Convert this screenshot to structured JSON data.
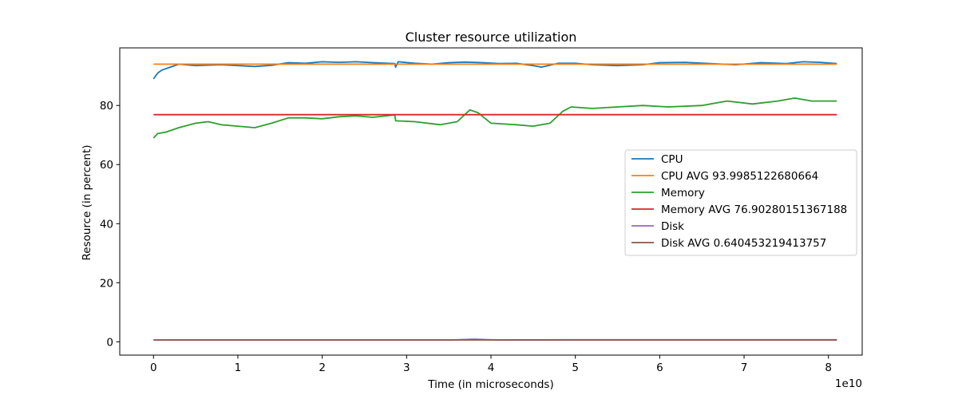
{
  "chart_data": {
    "type": "line",
    "title": "Cluster resource utilization",
    "xlabel": "Time (in microseconds)",
    "ylabel": "Resource (in percent)",
    "x_offset_label": "1e10",
    "xlim": [
      -0.4,
      8.4
    ],
    "ylim": [
      -4.5,
      99.5
    ],
    "x_ticks": [
      0,
      1,
      2,
      3,
      4,
      5,
      6,
      7,
      8
    ],
    "y_ticks": [
      0,
      20,
      40,
      60,
      80
    ],
    "grid": false,
    "legend_position": "center-right",
    "series": [
      {
        "name": "CPU",
        "color": "#1f77b4",
        "x": [
          0,
          0.05,
          0.1,
          0.2,
          0.3,
          0.5,
          0.8,
          1.0,
          1.2,
          1.4,
          1.6,
          1.8,
          2.0,
          2.2,
          2.4,
          2.6,
          2.86,
          2.87,
          2.9,
          3.1,
          3.3,
          3.5,
          3.7,
          3.9,
          4.1,
          4.3,
          4.5,
          4.6,
          4.8,
          5.0,
          5.2,
          5.5,
          5.8,
          6.0,
          6.3,
          6.6,
          6.9,
          7.2,
          7.5,
          7.7,
          7.9,
          8.1
        ],
        "y": [
          89.0,
          91.0,
          92.0,
          93.0,
          94.0,
          93.5,
          93.8,
          93.5,
          93.2,
          93.6,
          94.5,
          94.3,
          94.8,
          94.6,
          94.8,
          94.5,
          94.2,
          93.0,
          94.8,
          94.3,
          94.0,
          94.5,
          94.7,
          94.5,
          94.2,
          94.3,
          93.5,
          93.0,
          94.3,
          94.3,
          93.8,
          93.5,
          93.8,
          94.5,
          94.6,
          94.2,
          93.8,
          94.5,
          94.2,
          94.8,
          94.6,
          94.2
        ]
      },
      {
        "name": "CPU AVG 93.9985122680664",
        "color": "#ff7f0e",
        "x": [
          0,
          8.1
        ],
        "y": [
          93.9985122680664,
          93.9985122680664
        ]
      },
      {
        "name": "Memory",
        "color": "#2ca02c",
        "x": [
          0,
          0.05,
          0.15,
          0.3,
          0.5,
          0.65,
          0.8,
          1.0,
          1.2,
          1.4,
          1.6,
          1.8,
          2.0,
          2.2,
          2.4,
          2.6,
          2.86,
          2.87,
          3.1,
          3.4,
          3.6,
          3.75,
          3.85,
          4.0,
          4.3,
          4.5,
          4.7,
          4.85,
          4.95,
          5.2,
          5.5,
          5.8,
          6.1,
          6.5,
          6.8,
          7.1,
          7.4,
          7.6,
          7.8,
          8.1
        ],
        "y": [
          69.0,
          70.5,
          71.0,
          72.5,
          74.0,
          74.5,
          73.5,
          73.0,
          72.5,
          74.0,
          75.8,
          75.8,
          75.5,
          76.2,
          76.5,
          76.0,
          76.8,
          74.8,
          74.5,
          73.5,
          74.5,
          78.5,
          77.5,
          74.0,
          73.5,
          73.0,
          74.0,
          78.0,
          79.5,
          79.0,
          79.5,
          80.0,
          79.5,
          80.0,
          81.5,
          80.5,
          81.5,
          82.5,
          81.5,
          81.5
        ]
      },
      {
        "name": "Memory AVG 76.90280151367188",
        "color": "#d62728",
        "x": [
          0,
          8.1
        ],
        "y": [
          76.90280151367188,
          76.90280151367188
        ]
      },
      {
        "name": "Disk",
        "color": "#9467bd",
        "x": [
          0,
          3.5,
          3.8,
          4.1,
          4.9,
          8.1
        ],
        "y": [
          0.6,
          0.6,
          0.9,
          0.6,
          0.7,
          0.7
        ]
      },
      {
        "name": "Disk AVG 0.640453219413757",
        "color": "#8c564b",
        "x": [
          0,
          8.1
        ],
        "y": [
          0.640453219413757,
          0.640453219413757
        ]
      }
    ]
  }
}
